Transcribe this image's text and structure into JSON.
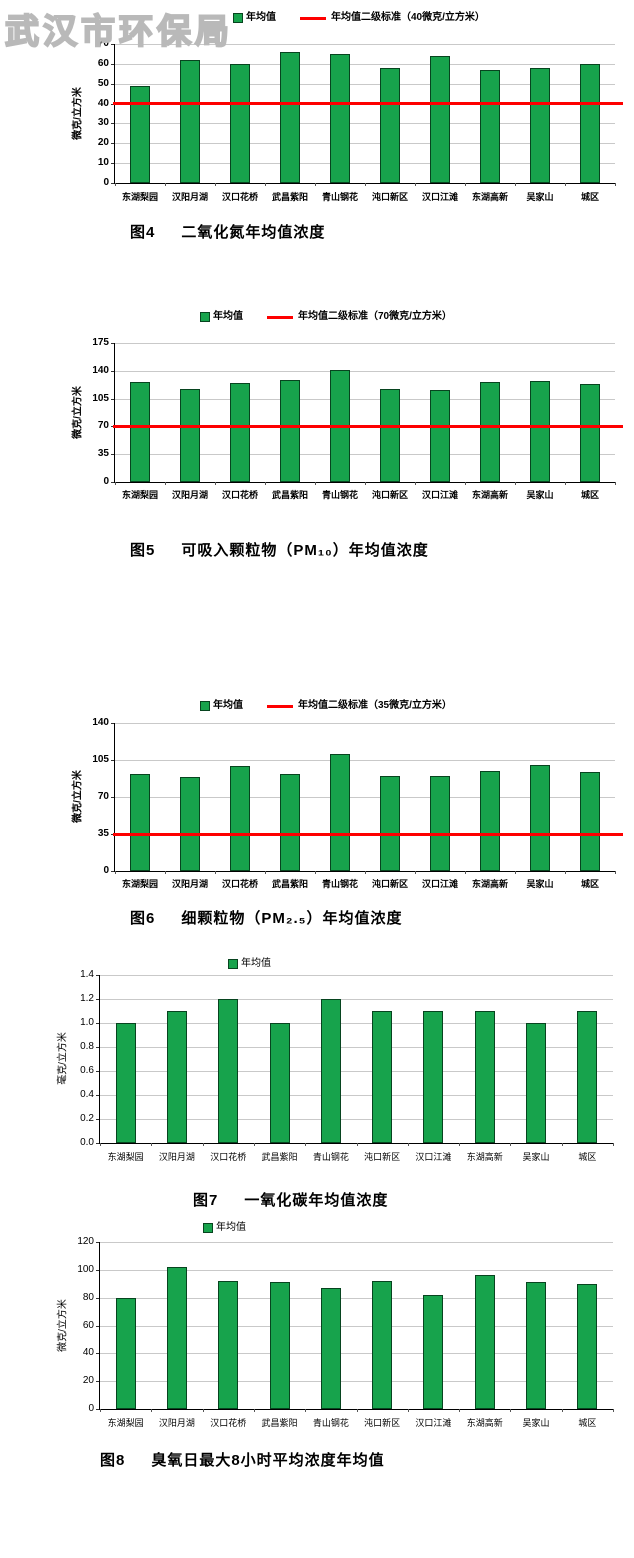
{
  "watermark": "武汉市环保局",
  "chart_data": [
    {
      "type": "bar",
      "fig_label": "图4",
      "title": "二氧化氮年均值浓度",
      "legend_series": "年均值",
      "legend_standard": "年均值二级标准（40微克/立方米）",
      "ylabel": "微克/立方米",
      "ylim": [
        0,
        70
      ],
      "ystep": 10,
      "standard_value": 40,
      "decimals": 0,
      "grid": "on",
      "legend_position": "top",
      "categories": [
        "东湖梨园",
        "汉阳月湖",
        "汉口花桥",
        "武昌紫阳",
        "青山钢花",
        "沌口新区",
        "汉口江滩",
        "东湖高新",
        "吴家山",
        "城区"
      ],
      "values": [
        49,
        62,
        60,
        66,
        65,
        58,
        64,
        57,
        58,
        60
      ]
    },
    {
      "type": "bar",
      "fig_label": "图5",
      "title": "可吸入颗粒物（PM₁₀）年均值浓度",
      "legend_series": "年均值",
      "legend_standard": "年均值二级标准（70微克/立方米）",
      "ylabel": "微克/立方米",
      "ylim": [
        0,
        175
      ],
      "ystep": 35,
      "standard_value": 70,
      "decimals": 0,
      "grid": "on",
      "legend_position": "top",
      "categories": [
        "东湖梨园",
        "汉阳月湖",
        "汉口花桥",
        "武昌紫阳",
        "青山钢花",
        "沌口新区",
        "汉口江滩",
        "东湖高新",
        "吴家山",
        "城区"
      ],
      "values": [
        126,
        117,
        125,
        128,
        141,
        117,
        116,
        126,
        127,
        124
      ]
    },
    {
      "type": "bar",
      "fig_label": "图6",
      "title": "细颗粒物（PM₂.₅）年均值浓度",
      "legend_series": "年均值",
      "legend_standard": "年均值二级标准（35微克/立方米）",
      "ylabel": "微克/立方米",
      "ylim": [
        0,
        140
      ],
      "ystep": 35,
      "standard_value": 35,
      "decimals": 0,
      "grid": "on",
      "legend_position": "top",
      "categories": [
        "东湖梨园",
        "汉阳月湖",
        "汉口花桥",
        "武昌紫阳",
        "青山钢花",
        "沌口新区",
        "汉口江滩",
        "东湖高新",
        "吴家山",
        "城区"
      ],
      "values": [
        92,
        89,
        99,
        92,
        111,
        90,
        90,
        95,
        100,
        94
      ]
    },
    {
      "type": "bar",
      "fig_label": "图7",
      "title": "一氧化碳年均值浓度",
      "legend_series": "年均值",
      "legend_standard": null,
      "ylabel": "毫克/立方米",
      "ylim": [
        0,
        1.4
      ],
      "ystep": 0.2,
      "standard_value": null,
      "decimals": 1,
      "grid": "on",
      "legend_position": "top",
      "categories": [
        "东湖梨园",
        "汉阳月湖",
        "汉口花桥",
        "武昌紫阳",
        "青山钢花",
        "沌口新区",
        "汉口江滩",
        "东湖高新",
        "吴家山",
        "城区"
      ],
      "values": [
        1.0,
        1.1,
        1.2,
        1.0,
        1.2,
        1.1,
        1.1,
        1.1,
        1.0,
        1.1
      ]
    },
    {
      "type": "bar",
      "fig_label": "图8",
      "title": "臭氧日最大8小时平均浓度年均值",
      "legend_series": "年均值",
      "legend_standard": null,
      "ylabel": "微克/立方米",
      "ylim": [
        0,
        120
      ],
      "ystep": 20,
      "standard_value": null,
      "decimals": 0,
      "grid": "on",
      "legend_position": "top",
      "categories": [
        "东湖梨园",
        "汉阳月湖",
        "汉口花桥",
        "武昌紫阳",
        "青山钢花",
        "沌口新区",
        "汉口江滩",
        "东湖高新",
        "吴家山",
        "城区"
      ],
      "values": [
        80,
        102,
        92,
        91,
        87,
        92,
        82,
        96,
        91,
        90
      ]
    }
  ]
}
